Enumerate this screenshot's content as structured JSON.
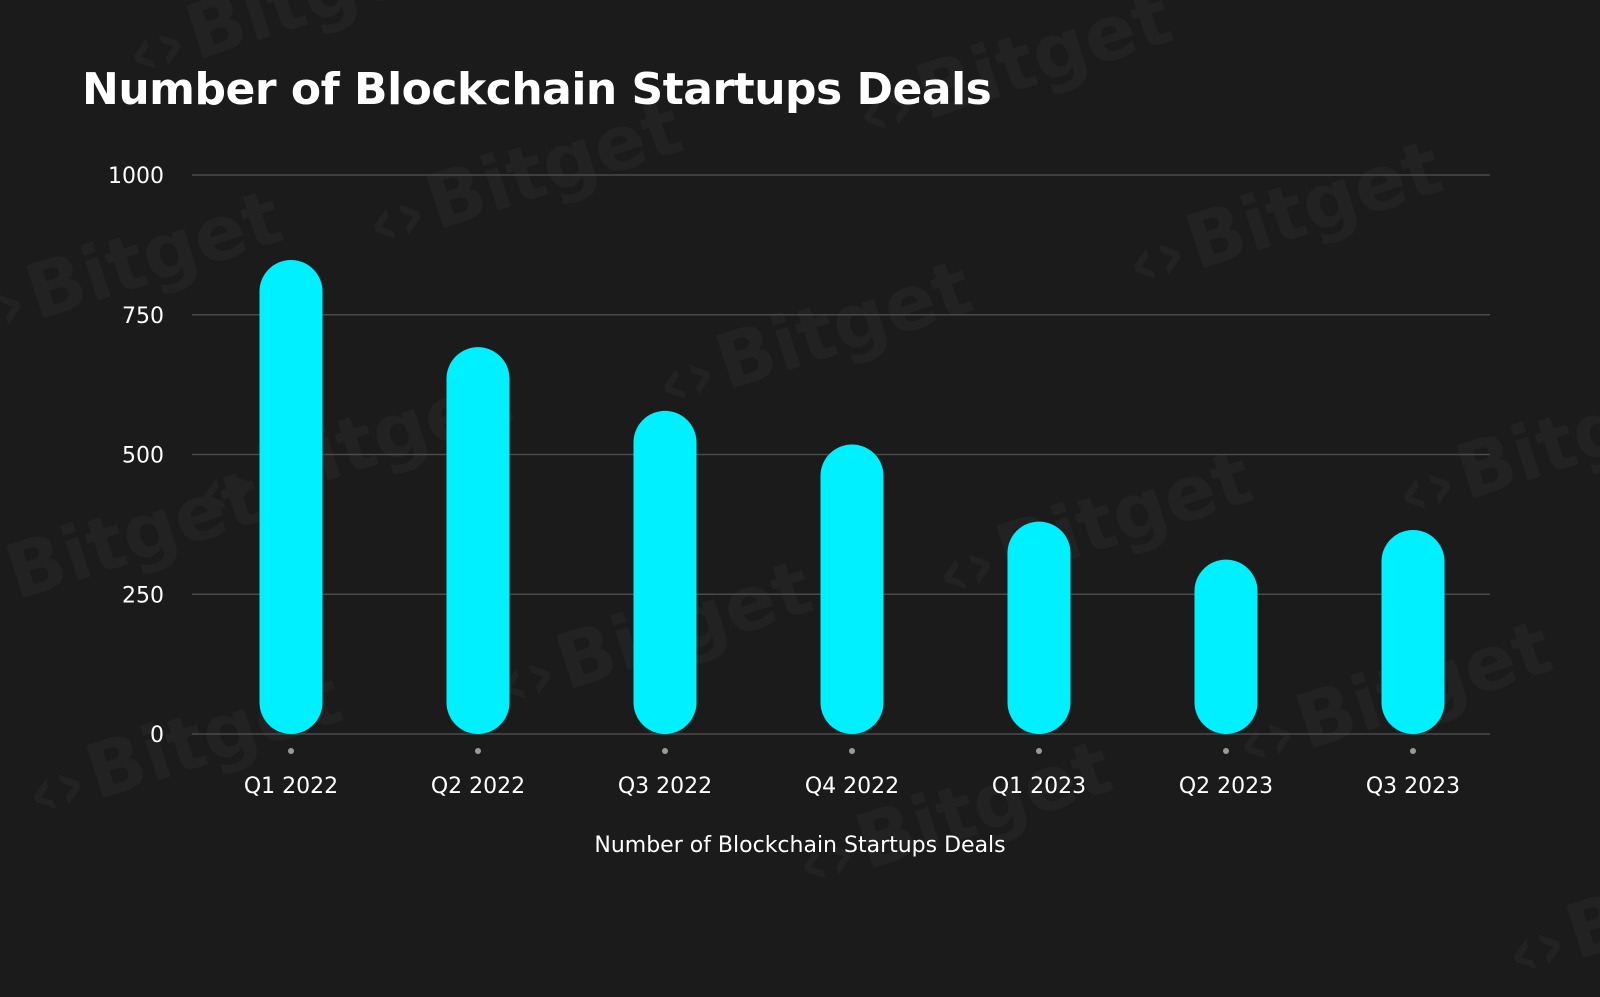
{
  "watermark": {
    "text": "Bitget",
    "icon": "bitget-logo-icon"
  },
  "chart_data": {
    "type": "bar",
    "title": "Number of Blockchain Startups Deals",
    "categories": [
      "Q1 2022",
      "Q2 2022",
      "Q3 2022",
      "Q4 2022",
      "Q1 2023",
      "Q2 2023",
      "Q3 2023"
    ],
    "values": [
      848,
      692,
      578,
      518,
      380,
      312,
      365
    ],
    "xlabel": "Number of Blockchain Startups Deals",
    "ylabel": "",
    "ylim": [
      0,
      1000
    ],
    "yticks": [
      "0",
      "250",
      "500",
      "750",
      "1000"
    ],
    "grid": true,
    "colors": {
      "bar": "#00F0FF",
      "background": "#1B1B1B",
      "grid": "#4A4A4A",
      "text": "#FFFFFF"
    }
  }
}
